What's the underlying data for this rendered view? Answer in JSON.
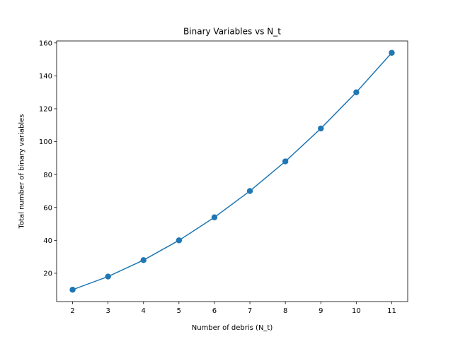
{
  "chart_data": {
    "type": "line",
    "title": "Binary Variables vs N_t",
    "xlabel": "Number of debris (N_t)",
    "ylabel": "Total number of binary variables",
    "x": [
      2,
      3,
      4,
      5,
      6,
      7,
      8,
      9,
      10,
      11
    ],
    "series": [
      {
        "values": [
          10,
          18,
          28,
          40,
          54,
          70,
          88,
          108,
          130,
          154
        ],
        "color": "#1f77b4",
        "marker": "circle"
      }
    ],
    "xlim": [
      1.55,
      11.45
    ],
    "ylim": [
      2.8,
      161.2
    ],
    "xticks": [
      2,
      3,
      4,
      5,
      6,
      7,
      8,
      9,
      10,
      11
    ],
    "yticks": [
      20,
      40,
      60,
      80,
      100,
      120,
      140,
      160
    ],
    "grid": false,
    "legend": "none"
  }
}
